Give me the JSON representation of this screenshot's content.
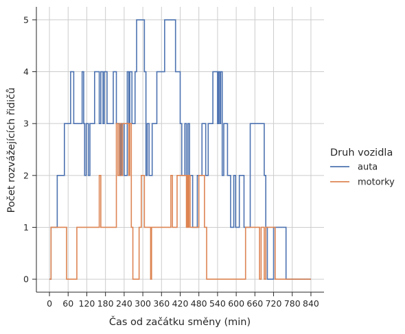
{
  "chart_data": {
    "type": "line",
    "title": "",
    "xlabel": "Čas od začátku směny (min)",
    "ylabel": "Počet rozvážejících řidičů",
    "xlim": [
      -42,
      882
    ],
    "ylim": [
      -0.25,
      5.25
    ],
    "x_ticks": [
      0,
      60,
      120,
      180,
      240,
      300,
      360,
      420,
      480,
      540,
      600,
      660,
      720,
      780,
      840
    ],
    "y_ticks": [
      0,
      1,
      2,
      3,
      4,
      5
    ],
    "grid": true,
    "step": "post",
    "legend": {
      "title": "Druh vozidla",
      "placement": "right"
    },
    "series": [
      {
        "name": "auta",
        "color": "#4c72b0",
        "points": [
          [
            0,
            0
          ],
          [
            5,
            1
          ],
          [
            25,
            2
          ],
          [
            48,
            3
          ],
          [
            68,
            4
          ],
          [
            78,
            3
          ],
          [
            105,
            4
          ],
          [
            110,
            3
          ],
          [
            113,
            2
          ],
          [
            118,
            3
          ],
          [
            125,
            2
          ],
          [
            130,
            3
          ],
          [
            145,
            4
          ],
          [
            160,
            3
          ],
          [
            165,
            4
          ],
          [
            172,
            3
          ],
          [
            176,
            4
          ],
          [
            185,
            3
          ],
          [
            205,
            4
          ],
          [
            215,
            3
          ],
          [
            225,
            2
          ],
          [
            228,
            3
          ],
          [
            232,
            2
          ],
          [
            235,
            3
          ],
          [
            240,
            2
          ],
          [
            250,
            4
          ],
          [
            255,
            3
          ],
          [
            258,
            4
          ],
          [
            265,
            3
          ],
          [
            275,
            4
          ],
          [
            280,
            5
          ],
          [
            305,
            4
          ],
          [
            310,
            2
          ],
          [
            314,
            3
          ],
          [
            320,
            2
          ],
          [
            330,
            3
          ],
          [
            345,
            4
          ],
          [
            370,
            5
          ],
          [
            405,
            4
          ],
          [
            420,
            3
          ],
          [
            425,
            2
          ],
          [
            435,
            3
          ],
          [
            440,
            2
          ],
          [
            445,
            3
          ],
          [
            450,
            2
          ],
          [
            460,
            1
          ],
          [
            475,
            2
          ],
          [
            490,
            3
          ],
          [
            502,
            2
          ],
          [
            510,
            3
          ],
          [
            525,
            4
          ],
          [
            540,
            3
          ],
          [
            543,
            4
          ],
          [
            547,
            3
          ],
          [
            550,
            4
          ],
          [
            555,
            2
          ],
          [
            560,
            3
          ],
          [
            572,
            2
          ],
          [
            582,
            1
          ],
          [
            592,
            2
          ],
          [
            598,
            1
          ],
          [
            610,
            2
          ],
          [
            625,
            1
          ],
          [
            645,
            3
          ],
          [
            690,
            2
          ],
          [
            695,
            1
          ],
          [
            700,
            0
          ],
          [
            720,
            1
          ],
          [
            760,
            0
          ],
          [
            840,
            0
          ]
        ]
      },
      {
        "name": "motorky",
        "color": "#dd8452",
        "points": [
          [
            0,
            0
          ],
          [
            5,
            1
          ],
          [
            55,
            0
          ],
          [
            88,
            1
          ],
          [
            160,
            2
          ],
          [
            165,
            1
          ],
          [
            215,
            3
          ],
          [
            220,
            2
          ],
          [
            225,
            3
          ],
          [
            230,
            2
          ],
          [
            235,
            3
          ],
          [
            255,
            2
          ],
          [
            258,
            3
          ],
          [
            263,
            1
          ],
          [
            268,
            0
          ],
          [
            288,
            1
          ],
          [
            295,
            2
          ],
          [
            305,
            1
          ],
          [
            325,
            0
          ],
          [
            328,
            1
          ],
          [
            390,
            2
          ],
          [
            395,
            1
          ],
          [
            410,
            2
          ],
          [
            440,
            1
          ],
          [
            442,
            2
          ],
          [
            445,
            1
          ],
          [
            448,
            2
          ],
          [
            452,
            1
          ],
          [
            480,
            2
          ],
          [
            498,
            1
          ],
          [
            505,
            0
          ],
          [
            630,
            1
          ],
          [
            675,
            0
          ],
          [
            680,
            1
          ],
          [
            690,
            0
          ],
          [
            695,
            1
          ],
          [
            725,
            0
          ],
          [
            840,
            0
          ]
        ]
      }
    ]
  }
}
